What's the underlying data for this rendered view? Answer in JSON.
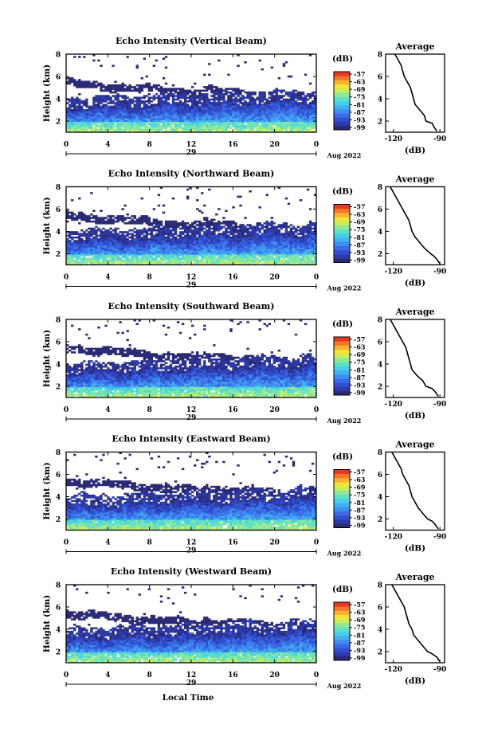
{
  "colorbar": {
    "unit_label": "(dB)",
    "tick_labels": [
      "-57",
      "-63",
      "-69",
      "-75",
      "-81",
      "-87",
      "-93",
      "-99"
    ],
    "colors": [
      "#2b2a76",
      "#2d3aa8",
      "#2f4fd0",
      "#3a6ae6",
      "#3d8ff0",
      "#42b0f2",
      "#46d0e6",
      "#5fe0c8",
      "#8fe898",
      "#c8ee5a",
      "#f2e23a",
      "#f7b230",
      "#f3762a",
      "#e63b22"
    ]
  },
  "x_axis": {
    "ticks": [
      "0",
      "4",
      "8",
      "12",
      "16",
      "20",
      "0"
    ],
    "day_label": "29",
    "month_label": "Aug 2022",
    "xlabel": "Local Time",
    "range": [
      0,
      24
    ]
  },
  "y_axis": {
    "label": "Height (km)",
    "ticks": [
      "2",
      "4",
      "6",
      "8"
    ],
    "range": [
      1,
      8
    ]
  },
  "profile_axis": {
    "title": "Average",
    "ticks": [
      "-120",
      "-90"
    ],
    "xlabel": "(dB)",
    "range": [
      -125,
      -87
    ]
  },
  "chart_data": [
    {
      "type": "heatmap",
      "title": "Echo Intensity (Vertical Beam)",
      "ylabel": "Height (km)",
      "x_range_hours": [
        0,
        24
      ],
      "y_range_km": [
        1,
        8
      ],
      "colorbar_db": [
        -99,
        -57
      ],
      "profile": {
        "title": "Average",
        "xlabel": "(dB)",
        "height_km": [
          1.1,
          1.5,
          1.8,
          2.0,
          2.5,
          3.0,
          3.5,
          4.0,
          4.5,
          5.0,
          5.5,
          6.0,
          6.5,
          7.0,
          7.5,
          8.0
        ],
        "db": [
          -92,
          -94,
          -95,
          -99,
          -100,
          -103,
          -106,
          -107,
          -108,
          -109,
          -111,
          -113,
          -114,
          -115,
          -117,
          -119
        ]
      }
    },
    {
      "type": "heatmap",
      "title": "Echo Intensity (Northward Beam)",
      "ylabel": "Height (km)",
      "x_range_hours": [
        0,
        24
      ],
      "y_range_km": [
        1,
        8
      ],
      "colorbar_db": [
        -99,
        -57
      ],
      "profile": {
        "title": "Average",
        "xlabel": "(dB)",
        "height_km": [
          1.1,
          1.5,
          1.8,
          2.0,
          2.5,
          3.0,
          3.5,
          4.0,
          4.5,
          5.0,
          5.5,
          6.0,
          6.5,
          7.0,
          7.5,
          8.0
        ],
        "db": [
          -90,
          -92,
          -94,
          -96,
          -100,
          -103,
          -106,
          -108,
          -109,
          -110,
          -112,
          -114,
          -116,
          -118,
          -120,
          -122
        ]
      }
    },
    {
      "type": "heatmap",
      "title": "Echo Intensity (Southward Beam)",
      "ylabel": "Height (km)",
      "x_range_hours": [
        0,
        24
      ],
      "y_range_km": [
        1,
        8
      ],
      "colorbar_db": [
        -99,
        -57
      ],
      "profile": {
        "title": "Average",
        "xlabel": "(dB)",
        "height_km": [
          1.1,
          1.5,
          1.8,
          2.0,
          2.5,
          3.0,
          3.5,
          4.0,
          4.5,
          5.0,
          5.5,
          6.0,
          6.5,
          7.0,
          7.5,
          8.0
        ],
        "db": [
          -91,
          -93,
          -95,
          -99,
          -101,
          -105,
          -108,
          -109,
          -110,
          -111,
          -112,
          -114,
          -116,
          -118,
          -120,
          -122
        ]
      }
    },
    {
      "type": "heatmap",
      "title": "Echo Intensity (Eastward Beam)",
      "ylabel": "Height (km)",
      "x_range_hours": [
        0,
        24
      ],
      "y_range_km": [
        1,
        8
      ],
      "colorbar_db": [
        -99,
        -57
      ],
      "profile": {
        "title": "Average",
        "xlabel": "(dB)",
        "height_km": [
          1.1,
          1.5,
          1.8,
          2.0,
          2.5,
          3.0,
          3.5,
          4.0,
          4.5,
          5.0,
          5.5,
          6.0,
          6.5,
          7.0,
          7.5,
          8.0
        ],
        "db": [
          -91,
          -93,
          -95,
          -98,
          -101,
          -104,
          -106,
          -108,
          -109,
          -110,
          -112,
          -114,
          -115,
          -117,
          -119,
          -121
        ]
      }
    },
    {
      "type": "heatmap",
      "title": "Echo Intensity (Westward Beam)",
      "ylabel": "Height (km)",
      "x_range_hours": [
        0,
        24
      ],
      "y_range_km": [
        1,
        8
      ],
      "colorbar_db": [
        -99,
        -57
      ],
      "profile": {
        "title": "Average",
        "xlabel": "(dB)",
        "height_km": [
          1.1,
          1.5,
          1.8,
          2.0,
          2.5,
          3.0,
          3.5,
          4.0,
          4.5,
          5.0,
          5.5,
          6.0,
          6.5,
          7.0,
          7.5,
          8.0
        ],
        "db": [
          -90,
          -92,
          -95,
          -98,
          -101,
          -104,
          -107,
          -108,
          -110,
          -111,
          -112,
          -113,
          -115,
          -117,
          -119,
          -121
        ]
      }
    }
  ]
}
